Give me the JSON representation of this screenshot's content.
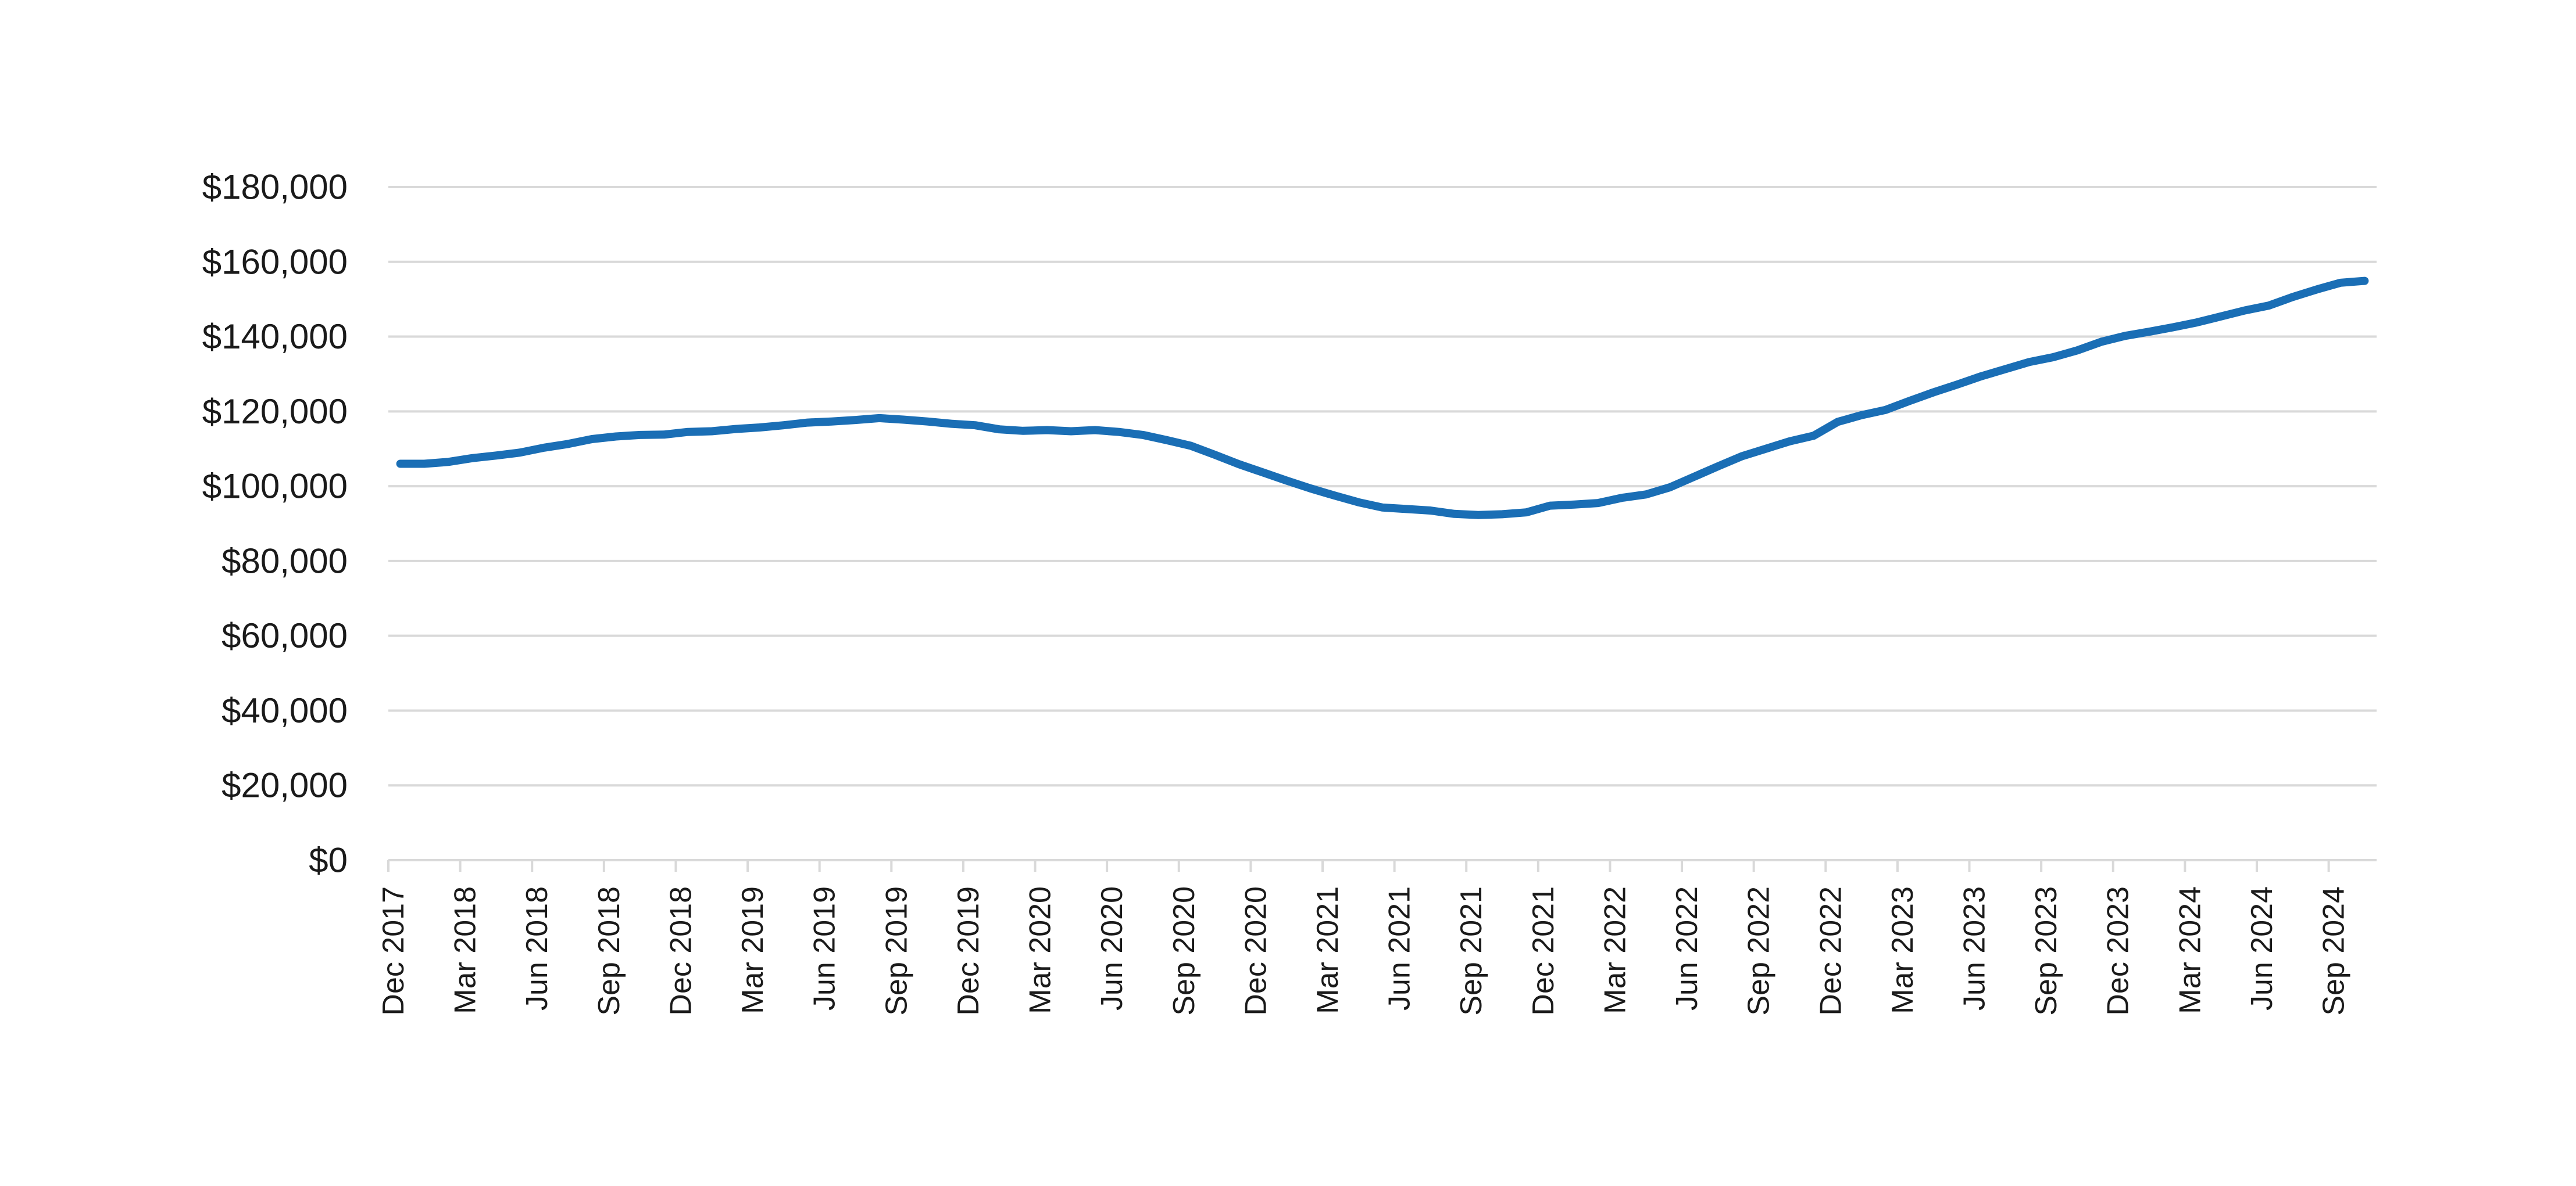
{
  "chart_data": {
    "type": "line",
    "title": "",
    "xlabel": "",
    "ylabel": "",
    "ylim": [
      0,
      180000
    ],
    "grid": true,
    "legend": "none",
    "y_ticks": [
      0,
      20000,
      40000,
      60000,
      80000,
      100000,
      120000,
      140000,
      160000,
      180000
    ],
    "y_tick_labels": [
      "$0",
      "$20,000",
      "$40,000",
      "$60,000",
      "$80,000",
      "$100,000",
      "$120,000",
      "$140,000",
      "$160,000",
      "$180,000"
    ],
    "x_ticks": [
      "2017-12",
      "2018-03",
      "2018-06",
      "2018-09",
      "2018-12",
      "2019-03",
      "2019-06",
      "2019-09",
      "2019-12",
      "2020-03",
      "2020-06",
      "2020-09",
      "2020-12",
      "2021-03",
      "2021-06",
      "2021-09",
      "2021-12",
      "2022-03",
      "2022-06",
      "2022-09",
      "2022-12",
      "2023-03",
      "2023-06",
      "2023-09",
      "2023-12",
      "2024-03",
      "2024-06",
      "2024-09"
    ],
    "x_tick_labels": [
      "Dec 2017",
      "Mar 2018",
      "Jun 2018",
      "Sep 2018",
      "Dec 2018",
      "Mar 2019",
      "Jun 2019",
      "Sep 2019",
      "Dec 2019",
      "Mar 2020",
      "Jun 2020",
      "Sep 2020",
      "Dec 2020",
      "Mar 2021",
      "Jun 2021",
      "Sep 2021",
      "Dec 2021",
      "Mar 2022",
      "Jun 2022",
      "Sep 2022",
      "Dec 2022",
      "Mar 2023",
      "Jun 2023",
      "Sep 2023",
      "Dec 2023",
      "Mar 2024",
      "Jun 2024",
      "Sep 2024"
    ],
    "x": [
      "2017-12",
      "2018-01",
      "2018-02",
      "2018-03",
      "2018-04",
      "2018-05",
      "2018-06",
      "2018-07",
      "2018-08",
      "2018-09",
      "2018-10",
      "2018-11",
      "2018-12",
      "2019-01",
      "2019-02",
      "2019-03",
      "2019-04",
      "2019-05",
      "2019-06",
      "2019-07",
      "2019-08",
      "2019-09",
      "2019-10",
      "2019-11",
      "2019-12",
      "2020-01",
      "2020-02",
      "2020-03",
      "2020-04",
      "2020-05",
      "2020-06",
      "2020-07",
      "2020-08",
      "2020-09",
      "2020-10",
      "2020-11",
      "2020-12",
      "2021-01",
      "2021-02",
      "2021-03",
      "2021-04",
      "2021-05",
      "2021-06",
      "2021-07",
      "2021-08",
      "2021-09",
      "2021-10",
      "2021-11",
      "2021-12",
      "2022-01",
      "2022-02",
      "2022-03",
      "2022-04",
      "2022-05",
      "2022-06",
      "2022-07",
      "2022-08",
      "2022-09",
      "2022-10",
      "2022-11",
      "2022-12",
      "2023-01",
      "2023-02",
      "2023-03",
      "2023-04",
      "2023-05",
      "2023-06",
      "2023-07",
      "2023-08",
      "2023-09",
      "2023-10",
      "2023-11",
      "2023-12",
      "2024-01",
      "2024-02",
      "2024-03",
      "2024-04",
      "2024-05",
      "2024-06",
      "2024-07",
      "2024-08",
      "2024-09",
      "2024-10"
    ],
    "series": [
      {
        "color": "#1a6eb5",
        "values": [
          106000,
          106000,
          106500,
          107500,
          108200,
          109000,
          110300,
          111300,
          112600,
          113300,
          113700,
          113800,
          114500,
          114700,
          115300,
          115700,
          116300,
          117000,
          117300,
          117700,
          118200,
          117800,
          117300,
          116700,
          116300,
          115200,
          114800,
          115000,
          114700,
          115000,
          114500,
          113700,
          112300,
          110800,
          108400,
          105900,
          103700,
          101500,
          99400,
          97500,
          95700,
          94300,
          93900,
          93500,
          92600,
          92300,
          92500,
          93000,
          94800,
          95100,
          95500,
          96900,
          97800,
          99700,
          102500,
          105300,
          108000,
          110000,
          112000,
          113500,
          117200,
          119000,
          120400,
          122800,
          125100,
          127200,
          129400,
          131300,
          133200,
          134500,
          136300,
          138600,
          140200,
          141300,
          142500,
          143800,
          145400,
          147000,
          148300,
          150600,
          152600,
          154400,
          154900
        ]
      }
    ]
  }
}
